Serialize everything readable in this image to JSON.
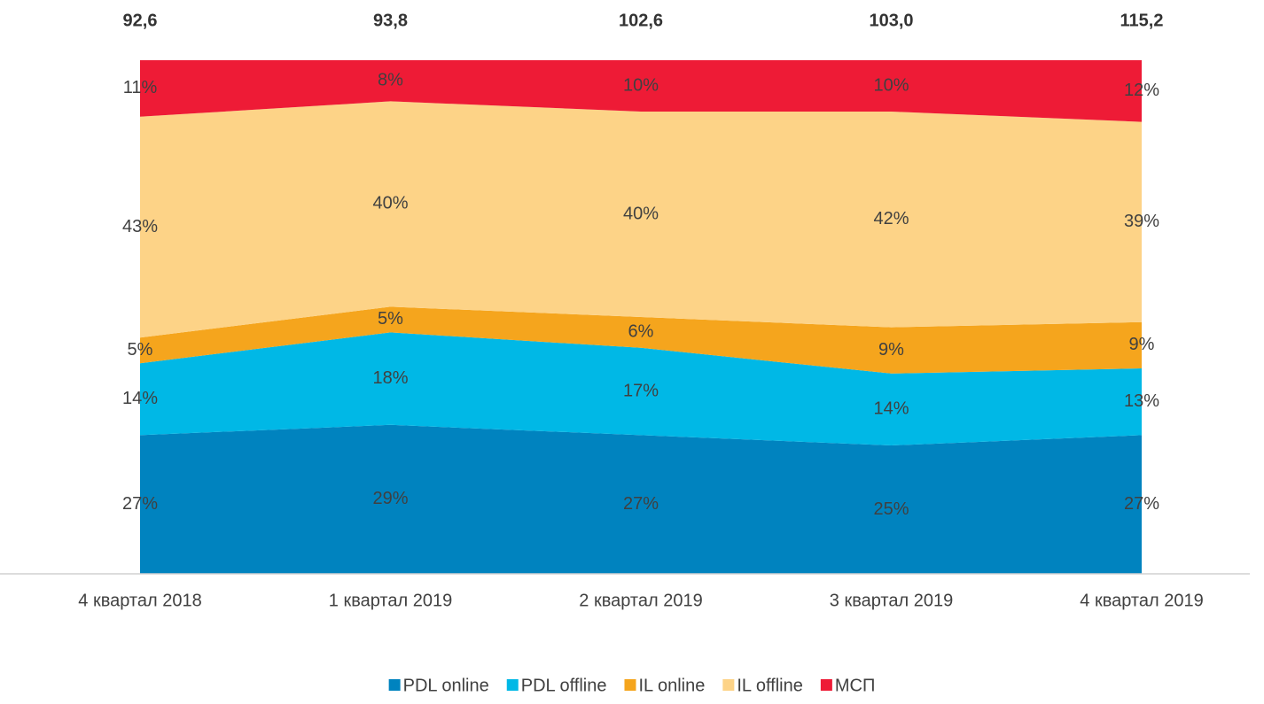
{
  "chart_data": {
    "type": "stacked_area_100",
    "categories": [
      "4 квартал 2018",
      "1 квартал 2019",
      "2 квартал 2019",
      "3 квартал 2019",
      "4 квартал 2019"
    ],
    "totals": [
      92.6,
      93.8,
      102.6,
      103.0,
      115.2
    ],
    "total_labels": [
      "92,6",
      "93,8",
      "102,6",
      "103,0",
      "115,2"
    ],
    "ylim": [
      0,
      100
    ],
    "legend": "bottom",
    "series": [
      {
        "name": "PDL online",
        "color": "#0083bf",
        "values": [
          27,
          29,
          27,
          25,
          27
        ],
        "value_labels": [
          "27%",
          "29%",
          "27%",
          "25%",
          "27%"
        ]
      },
      {
        "name": "PDL offline",
        "color": "#00b8e6",
        "values": [
          14,
          18,
          17,
          14,
          13
        ],
        "value_labels": [
          "14%",
          "18%",
          "17%",
          "14%",
          "13%"
        ]
      },
      {
        "name": "IL online",
        "color": "#f5a51d",
        "values": [
          5,
          5,
          6,
          9,
          9
        ],
        "value_labels": [
          "5%",
          "5%",
          "6%",
          "9%",
          "9%"
        ]
      },
      {
        "name": "IL offline",
        "color": "#fdd387",
        "values": [
          43,
          40,
          40,
          42,
          39
        ],
        "value_labels": [
          "43%",
          "40%",
          "40%",
          "42%",
          "39%"
        ]
      },
      {
        "name": "МСП",
        "color": "#ee1b36",
        "values": [
          11,
          8,
          10,
          10,
          12
        ],
        "value_labels": [
          "11%",
          "8%",
          "10%",
          "10%",
          "12%"
        ]
      }
    ]
  }
}
